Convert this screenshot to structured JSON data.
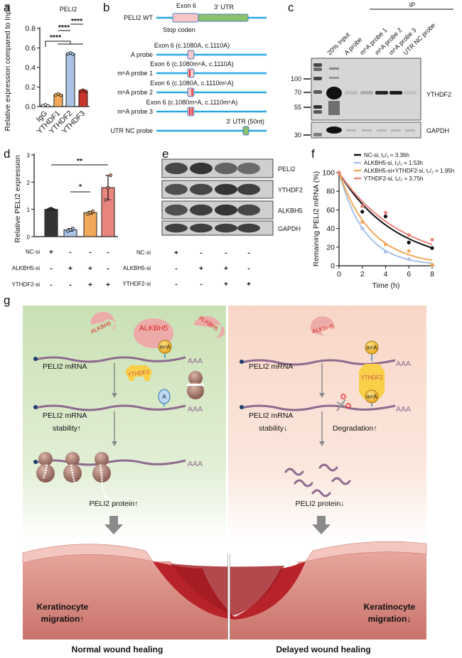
{
  "panels": {
    "a": "a",
    "b": "b",
    "c": "c",
    "d": "d",
    "e": "e",
    "f": "f",
    "g": "g"
  },
  "panel_b": {
    "rows": [
      {
        "label": "PELI2 WT",
        "annotation_top_left": "Exon 6",
        "annotation_top_right": "3' UTR",
        "annotation_bottom": "Stop coden"
      },
      {
        "label": "A probe",
        "annotation": "Exon 6 (c.1080A, c.1110A)"
      },
      {
        "label": "m⁶A probe 1",
        "annotation": "Exon 6 (c.1080m⁶A, c.1110A)"
      },
      {
        "label": "m⁶A probe 2",
        "annotation": "Exon 6 (c.1080A, c.1110m⁶A)"
      },
      {
        "label": "m⁶A probe 3",
        "annotation": "Exon 6 (c.1080m⁶A, c.1110m⁶A)"
      },
      {
        "label": "UTR NC probe",
        "annotation": "3' UTR (50nt)"
      }
    ],
    "colors": {
      "line": "#29a9e0",
      "exon": "#f7c6c7",
      "utr": "#8cc06b",
      "m6a_mark": "#e0202a"
    }
  },
  "panel_c": {
    "ip_label": "IP",
    "lanes": [
      "20% Input",
      "A probe",
      "m⁶A probe 1",
      "m⁶A probe 2",
      "m⁶A probe 3",
      "UTR NC probe"
    ],
    "mw_markers": [
      "100",
      "70",
      "55",
      "30"
    ],
    "bands": [
      "YTHDF2",
      "GAPDH"
    ]
  },
  "panel_e": {
    "bands": [
      "PELI2",
      "YTHDF2",
      "ALKBH5",
      "GAPDH"
    ],
    "conditions": [
      {
        "label": "NC-si",
        "signs": [
          "+",
          "-",
          "-",
          "-"
        ]
      },
      {
        "label": "ALKBH5-si",
        "signs": [
          "-",
          "+",
          "+",
          "-"
        ]
      },
      {
        "label": "YTHDF2-si",
        "signs": [
          "-",
          "-",
          "+",
          "+"
        ]
      }
    ]
  },
  "chart_data": [
    {
      "type": "bar",
      "title": "PELI2",
      "ylabel": "Relative expression compared to Input",
      "categories": [
        "IgG",
        "YTHDF1",
        "YTHDF2",
        "YTHDF3"
      ],
      "values": [
        0.01,
        0.12,
        0.54,
        0.16
      ],
      "colors": [
        "#e8e8e8",
        "#f2a95a",
        "#a9c2e6",
        "#c8352f"
      ],
      "ylim": [
        0,
        0.8
      ],
      "yticks": [
        "0.0",
        "0.2",
        "0.4",
        "0.6",
        "0.8"
      ],
      "significance": [
        {
          "from": "IgG",
          "to": "YTHDF2",
          "label": "****"
        },
        {
          "from": "YTHDF1",
          "to": "YTHDF2",
          "label": "****"
        },
        {
          "from": "YTHDF2",
          "to": "YTHDF3",
          "label": "****"
        }
      ]
    },
    {
      "type": "bar",
      "ylabel": "Relative PELI2 expression",
      "categories": [
        "NC-si",
        "ALKBH5-si",
        "ALKBH5-si+YTHDF2-si",
        "YTHDF2-si"
      ],
      "values": [
        1.0,
        0.25,
        0.88,
        1.8
      ],
      "errors": [
        0.0,
        0.05,
        0.05,
        0.45
      ],
      "colors": [
        "#333333",
        "#a9c2e6",
        "#f2a95a",
        "#e8867e"
      ],
      "ylim": [
        0,
        3
      ],
      "yticks": [
        "0",
        "1",
        "2",
        "3"
      ],
      "significance": [
        {
          "from": "NC-si",
          "to": "YTHDF2-si",
          "label": "**"
        },
        {
          "from": "ALKBH5-si",
          "to": "ALKBH5-si+YTHDF2-si",
          "label": "*"
        }
      ],
      "conditions": [
        {
          "label": "NC-si",
          "signs": [
            "+",
            "-",
            "-",
            "-"
          ]
        },
        {
          "label": "ALKBH5-si",
          "signs": [
            "-",
            "+",
            "+",
            "-"
          ]
        },
        {
          "label": "YTHDF2-si",
          "signs": [
            "-",
            "-",
            "+",
            "+"
          ]
        }
      ]
    },
    {
      "type": "line",
      "xlabel": "Time (h)",
      "ylabel": "Remaining PELI2 mRNA (%)",
      "xlim": [
        0,
        8
      ],
      "ylim": [
        0,
        100
      ],
      "xticks": [
        "0",
        "2",
        "4",
        "6",
        "8"
      ],
      "yticks": [
        "0",
        "20",
        "40",
        "60",
        "80",
        "100"
      ],
      "legend": "top",
      "series": [
        {
          "name": "NC-si, t₁/₂ = 3.36h",
          "half_life": 3.36,
          "color": "#111111",
          "x": [
            0,
            2,
            4,
            6,
            8
          ],
          "y": [
            100,
            58,
            53,
            25,
            19
          ]
        },
        {
          "name": "ALKBH5-si, t₁/₂ = 1.53h",
          "half_life": 1.53,
          "color": "#a9c2e6",
          "x": [
            0,
            2,
            4,
            6,
            8
          ],
          "y": [
            100,
            40,
            15,
            7,
            1
          ]
        },
        {
          "name": "ALKBH5-si+YTHDF2-si, t₁/₂ = 1.95h",
          "half_life": 1.95,
          "color": "#f2a95a",
          "x": [
            0,
            2,
            4,
            6,
            8
          ],
          "y": [
            100,
            47,
            23,
            16,
            1
          ]
        },
        {
          "name": "YTHDF2-si, t₁/₂ = 3.75h",
          "half_life": 3.75,
          "color": "#e8867e",
          "x": [
            0,
            2,
            4,
            6,
            8
          ],
          "y": [
            100,
            64,
            57,
            33,
            28
          ]
        }
      ]
    }
  ],
  "panel_g": {
    "left": {
      "alkbh5": "ALKBH5",
      "m6a": "m⁶A",
      "a": "A",
      "ythdf2": "YTHDF2",
      "polyA": "AAA",
      "mrna": "PELI2 mRNA",
      "stability_1": "PELI2 mRNA",
      "stability_2": "stability↑",
      "protein": "PELI2 protein↑",
      "migration_1": "Keratinocyte",
      "migration_2": "migration↑",
      "caption": "Normal wound healing",
      "bg": "#d4e6c4"
    },
    "right": {
      "alkbh5": "ALKBH5",
      "m6a": "m⁶A",
      "ythdf2": "YTHDF2",
      "polyA": "AAA",
      "mrna": "PELI2 mRNA",
      "stability_1": "PELI2 mRNA",
      "stability_2": "stability↓",
      "degradation": "Degradation↑",
      "protein": "PELI2 protein↓",
      "migration_1": "Keratinocyte",
      "migration_2": "migration↓",
      "caption": "Delayed wound healing",
      "bg": "#fbe1d6"
    }
  }
}
